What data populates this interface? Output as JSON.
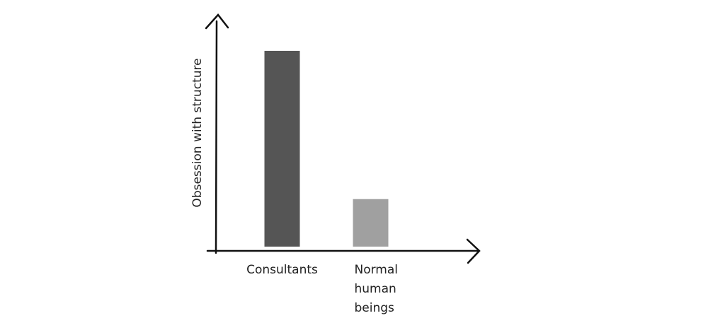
{
  "chart_data": {
    "type": "bar",
    "y_label": "Obsession with structure",
    "categories": [
      "Consultants",
      "Normal human beings"
    ],
    "values": [
      85,
      22
    ],
    "colors": [
      "#555555",
      "#a0a0a0"
    ],
    "ylim": [
      0,
      100
    ]
  }
}
